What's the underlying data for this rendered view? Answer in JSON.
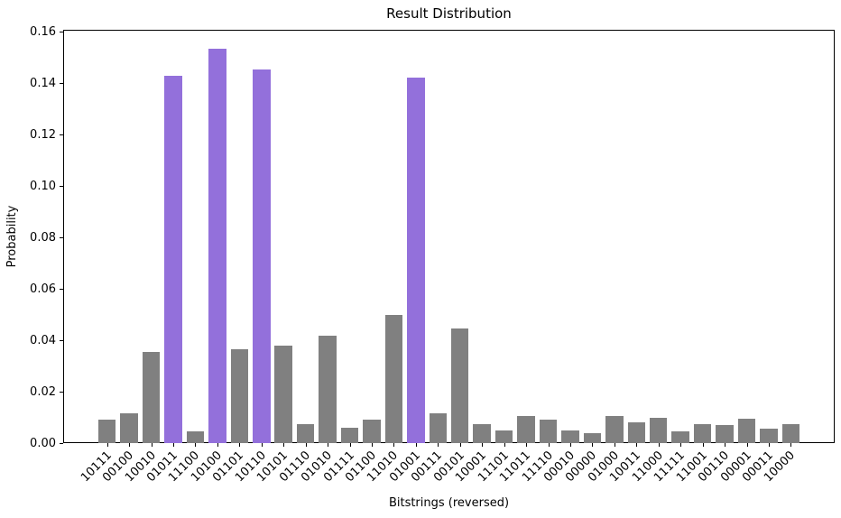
{
  "chart_data": {
    "type": "bar",
    "title": "Result Distribution",
    "xlabel": "Bitstrings (reversed)",
    "ylabel": "Probability",
    "categories": [
      "10111",
      "00100",
      "10010",
      "01011",
      "11100",
      "10100",
      "01101",
      "10110",
      "10101",
      "01110",
      "01010",
      "01111",
      "01100",
      "11010",
      "01001",
      "00111",
      "00101",
      "10001",
      "11101",
      "11011",
      "11110",
      "00010",
      "00000",
      "01000",
      "10011",
      "11000",
      "11111",
      "11001",
      "00110",
      "00001",
      "00011",
      "10000"
    ],
    "values": [
      0.009,
      0.0115,
      0.0355,
      0.143,
      0.0045,
      0.1535,
      0.0365,
      0.1455,
      0.038,
      0.0075,
      0.042,
      0.006,
      0.009,
      0.05,
      0.1425,
      0.0115,
      0.0445,
      0.0075,
      0.005,
      0.0105,
      0.009,
      0.005,
      0.004,
      0.0105,
      0.008,
      0.01,
      0.0045,
      0.0075,
      0.007,
      0.0095,
      0.0055,
      0.0075
    ],
    "highlighted_categories": [
      "01011",
      "10100",
      "10110",
      "01001"
    ],
    "bar_color_default": "#808080",
    "bar_color_highlight": "#9370DB",
    "background_color": "#ffffff",
    "axis_color": "#000000",
    "ylim": [
      0,
      0.161
    ],
    "yticks": [
      0.0,
      0.02,
      0.04,
      0.06,
      0.08,
      0.1,
      0.12,
      0.14,
      0.16
    ],
    "ytick_labels": [
      "0.00",
      "0.02",
      "0.04",
      "0.06",
      "0.08",
      "0.10",
      "0.12",
      "0.14",
      "0.16"
    ],
    "x_tick_rotation_deg": 45,
    "grid": false,
    "legend": "none",
    "bar_relative_width": 0.8
  }
}
